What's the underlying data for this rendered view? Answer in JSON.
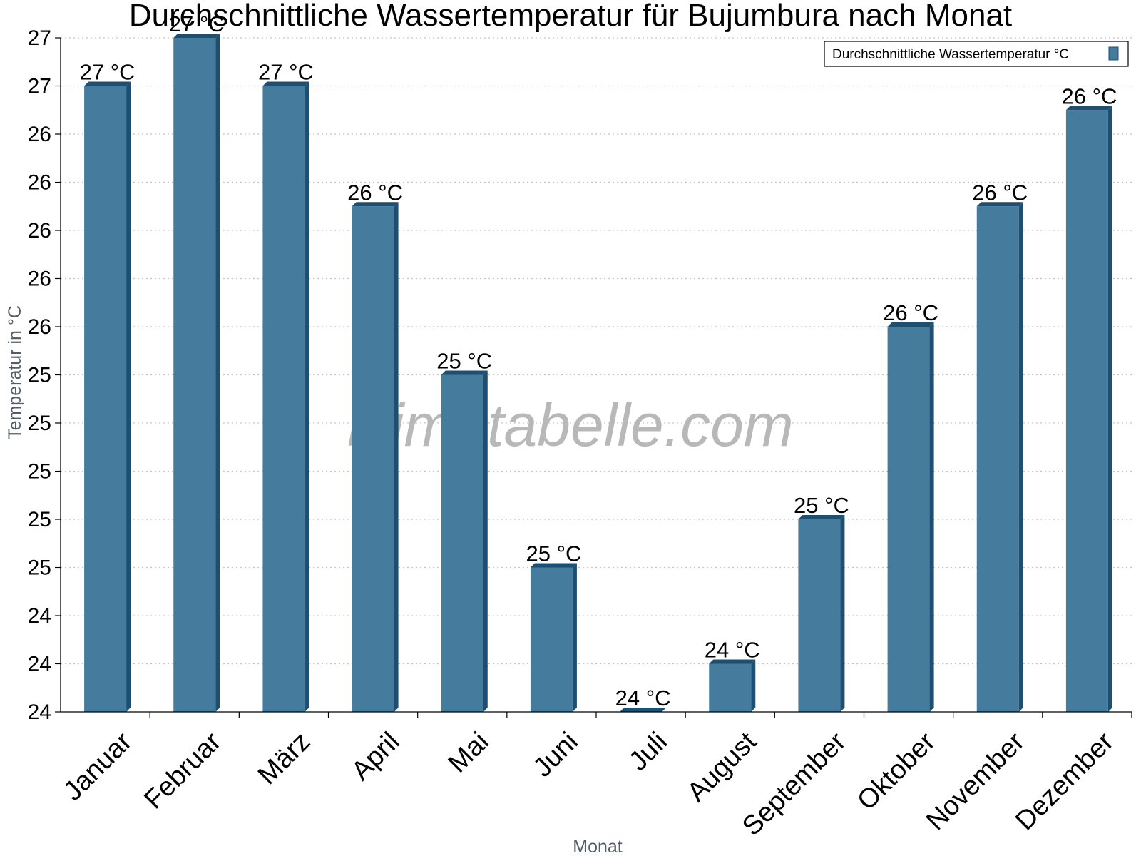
{
  "chart_data": {
    "type": "bar",
    "title": "Durchschnittliche Wassertemperatur für Bujumbura nach Monat",
    "xlabel": "Monat",
    "ylabel": "Temperatur in °C",
    "categories": [
      "Januar",
      "Februar",
      "März",
      "April",
      "Mai",
      "Juni",
      "Juli",
      "August",
      "September",
      "Oktober",
      "November",
      "Dezember"
    ],
    "series": [
      {
        "name": "Durchschnittliche Wassertemperatur °C",
        "values": [
          26.6,
          26.8,
          26.6,
          26.1,
          25.4,
          24.6,
          24.0,
          24.2,
          24.8,
          25.6,
          26.1,
          26.5
        ],
        "labels": [
          "27 °C",
          "27 °C",
          "27 °C",
          "26 °C",
          "25 °C",
          "25 °C",
          "24 °C",
          "24 °C",
          "25 °C",
          "26 °C",
          "26 °C",
          "26 °C"
        ],
        "color": "#457b9d",
        "edge_color": "#1d4f73"
      }
    ],
    "ylim": [
      24.0,
      26.8
    ],
    "y_ticks": [
      24.0,
      24.2,
      24.4,
      24.6,
      24.8,
      25.0,
      25.2,
      25.4,
      25.6,
      25.8,
      26.0,
      26.2,
      26.4,
      26.6,
      26.8
    ],
    "y_tick_labels": [
      "24",
      "24",
      "24",
      "25",
      "25",
      "25",
      "25",
      "25",
      "26",
      "26",
      "26",
      "26",
      "26",
      "27",
      "27"
    ],
    "grid": true,
    "legend_position": "top-right",
    "watermark": "klimatabelle.com"
  }
}
